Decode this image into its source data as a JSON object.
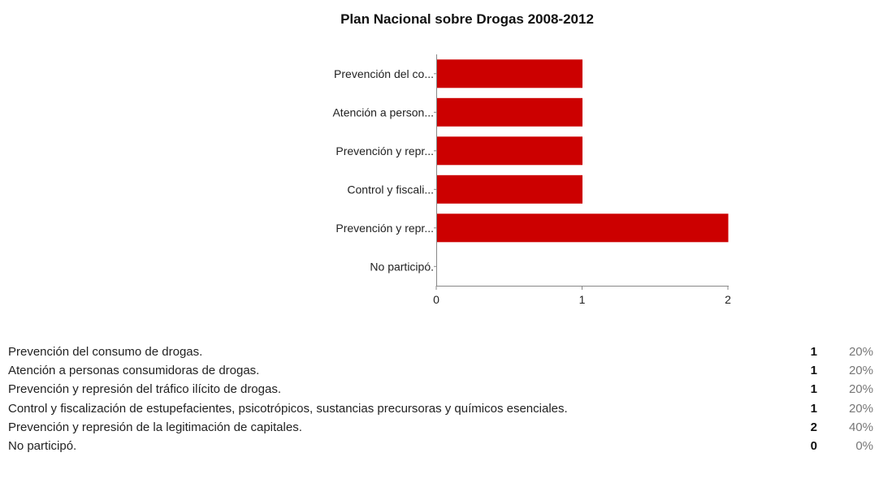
{
  "chart_data": {
    "type": "bar",
    "orientation": "horizontal",
    "title": "Plan Nacional sobre Drogas 2008-2012",
    "categories": [
      "Prevención del co...",
      "Atención a person...",
      "Prevención y repr...",
      "Control y fiscali...",
      "Prevención y repr...",
      "No participó."
    ],
    "values": [
      1,
      1,
      1,
      1,
      2,
      0
    ],
    "xlim": [
      0,
      2
    ],
    "xticks": [
      "0",
      "1",
      "2"
    ],
    "bar_color": "#cc0000",
    "grid": false
  },
  "summary": {
    "rows": [
      {
        "label": "Prevención del consumo de drogas.",
        "count": "1",
        "percent": "20%"
      },
      {
        "label": "Atención a personas consumidoras de drogas.",
        "count": "1",
        "percent": "20%"
      },
      {
        "label": "Prevención y represión del tráfico ilícito de drogas.",
        "count": "1",
        "percent": "20%"
      },
      {
        "label": "Control y fiscalización de estupefacientes, psicotrópicos, sustancias precursoras y químicos esenciales.",
        "count": "1",
        "percent": "20%"
      },
      {
        "label": "Prevención y represión de la legitimación de capitales.",
        "count": "2",
        "percent": "40%"
      },
      {
        "label": "No participó.",
        "count": "0",
        "percent": "0%"
      }
    ]
  }
}
